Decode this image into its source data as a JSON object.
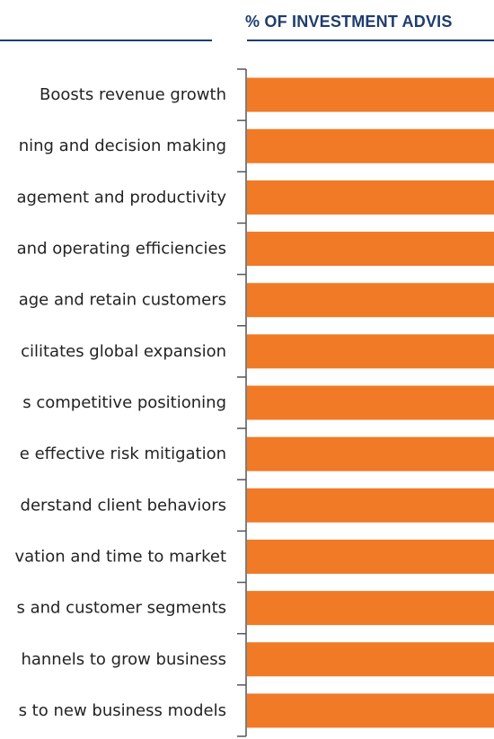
{
  "chart_data": {
    "type": "bar",
    "orientation": "horizontal",
    "title": "% OF INVESTMENT ADVIS",
    "categories": [
      "Boosts revenue growth",
      "ning and decision making",
      "agement and productivity",
      "and operating efficiencies",
      "age and retain customers",
      "cilitates global expansion",
      "s competitive positioning",
      "e effective risk mitigation",
      "derstand client behaviors",
      "vation and time to market",
      "s and customer segments",
      "hannels to grow business",
      "s to new business models"
    ],
    "values": [
      100,
      100,
      100,
      100,
      100,
      100,
      100,
      100,
      100,
      100,
      100,
      100,
      100
    ],
    "bar_color": "#f07a26",
    "axis_color": "#555555",
    "header_color": "#1f3d6d"
  }
}
